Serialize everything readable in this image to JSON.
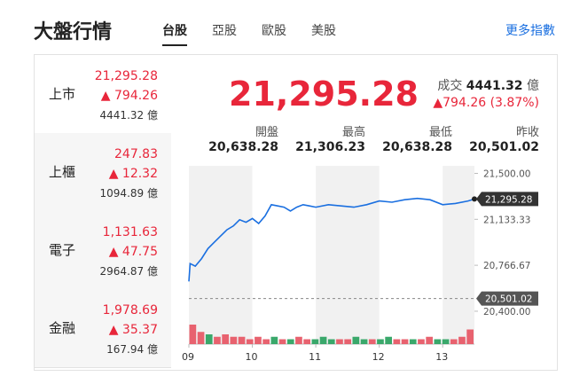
{
  "header": {
    "title": "大盤行情",
    "tabs": [
      "台股",
      "亞股",
      "歐股",
      "美股"
    ],
    "active_tab": 0,
    "more": "更多指數"
  },
  "markets": [
    {
      "name": "上市",
      "price": "21,295.28",
      "change": "794.26",
      "volume": "4441.32",
      "unit": "億"
    },
    {
      "name": "上櫃",
      "price": "247.83",
      "change": "12.32",
      "volume": "1094.89",
      "unit": "億"
    },
    {
      "name": "電子",
      "price": "1,131.63",
      "change": "47.75",
      "volume": "2964.87",
      "unit": "億"
    },
    {
      "name": "金融",
      "price": "1,978.69",
      "change": "35.37",
      "volume": "167.94",
      "unit": "億"
    }
  ],
  "summary": {
    "price": "21,295.28",
    "volume_label": "成交",
    "volume": "4441.32",
    "volume_unit": "億",
    "change": "794.26",
    "change_pct": "(3.87%)",
    "stats": [
      {
        "label": "開盤",
        "value": "20,638.28"
      },
      {
        "label": "最高",
        "value": "21,306.23"
      },
      {
        "label": "最低",
        "value": "20,638.28"
      },
      {
        "label": "昨收",
        "value": "20,501.02"
      }
    ]
  },
  "chart": {
    "type": "line",
    "color": "#1a6fe0",
    "x": [
      9.0,
      9.02,
      9.1,
      9.2,
      9.3,
      9.4,
      9.5,
      9.6,
      9.7,
      9.8,
      9.9,
      10.0,
      10.1,
      10.2,
      10.3,
      10.4,
      10.5,
      10.6,
      10.7,
      10.8,
      10.9,
      11.0,
      11.2,
      11.4,
      11.6,
      11.8,
      12.0,
      12.2,
      12.4,
      12.6,
      12.8,
      13.0,
      13.2,
      13.4,
      13.5
    ],
    "values": [
      20638,
      20780,
      20760,
      20820,
      20900,
      20950,
      21000,
      21050,
      21080,
      21130,
      21110,
      21140,
      21100,
      21160,
      21250,
      21240,
      21230,
      21200,
      21230,
      21250,
      21240,
      21230,
      21250,
      21240,
      21230,
      21250,
      21280,
      21270,
      21290,
      21300,
      21290,
      21250,
      21260,
      21280,
      21295.28
    ],
    "volume": [
      8,
      5,
      4,
      3,
      4,
      3,
      3,
      2,
      3,
      2,
      3,
      2,
      2,
      3,
      2,
      2,
      3,
      2,
      2,
      2,
      3,
      2,
      2,
      2,
      3,
      2,
      2,
      2,
      2,
      3,
      2,
      2,
      2,
      3,
      6
    ],
    "xlim": [
      9,
      13.5
    ],
    "xticks": [
      {
        "value": 9,
        "label": "09"
      },
      {
        "value": 10,
        "label": "10"
      },
      {
        "value": 11,
        "label": "11"
      },
      {
        "value": 12,
        "label": "12"
      },
      {
        "value": 13,
        "label": "13"
      }
    ],
    "ylim": [
      20350,
      21560
    ],
    "yticks": [
      {
        "value": 21500,
        "label": "21,500.00"
      },
      {
        "value": 21133.33,
        "label": "21,133.33"
      },
      {
        "value": 20766.67,
        "label": "20,766.67"
      },
      {
        "value": 20400,
        "label": "20,400.00"
      }
    ],
    "prev_close": {
      "value": 20501.02,
      "label": "20,501.02"
    },
    "last": {
      "value": 21295.28,
      "label": "21,295.28"
    }
  }
}
